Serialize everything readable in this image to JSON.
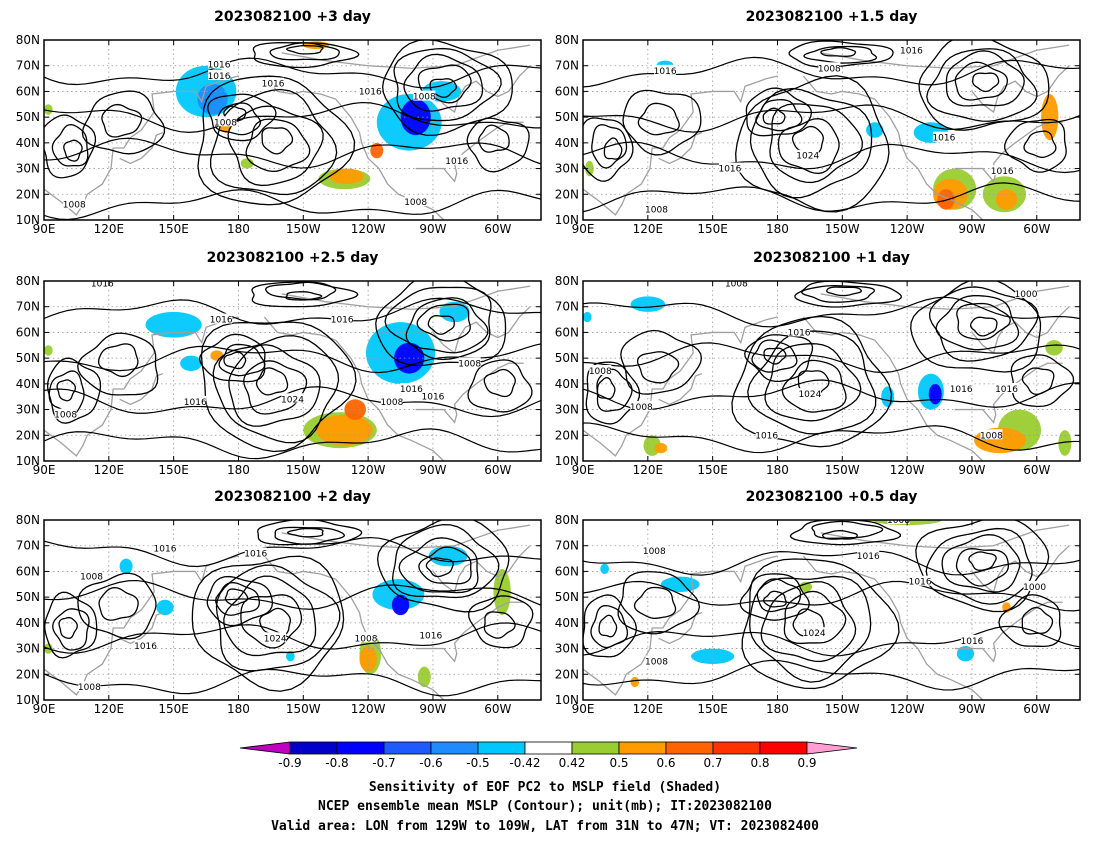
{
  "figure": {
    "captions": [
      "Sensitivity of EOF PC2 to MSLP field (Shaded)",
      "NCEP ensemble mean MSLP (Contour); unit(mb); IT:2023082100",
      "Valid area: LON from 129W to 109W, LAT from 31N to 47N; VT: 2023082400"
    ]
  },
  "axes": {
    "lat_labels": [
      "80N",
      "70N",
      "60N",
      "50N",
      "40N",
      "30N",
      "20N",
      "10N"
    ],
    "lon_labels": [
      "90E",
      "120E",
      "150E",
      "180",
      "150W",
      "120W",
      "90W",
      "60W"
    ]
  },
  "colorbar": {
    "ticks": [
      "-0.9",
      "-0.8",
      "-0.7",
      "-0.6",
      "-0.5",
      "-0.42",
      "0.42",
      "0.5",
      "0.6",
      "0.7",
      "0.8",
      "0.9"
    ],
    "colors": [
      "#c000c0",
      "#0000c8",
      "#0000ff",
      "#1e5aff",
      "#1e8cff",
      "#00c8ff",
      "#ffffff",
      "#9acd32",
      "#ff9b00",
      "#ff6400",
      "#ff3200",
      "#ff0000",
      "#ff9ed2"
    ]
  },
  "panels": [
    {
      "title": "2023082100 +3 day",
      "contour_labels": [
        {
          "text": "1016",
          "lon": 171,
          "lat": 70.5
        },
        {
          "text": "1016",
          "lon": 171,
          "lat": 66
        },
        {
          "text": "1016",
          "lon": 196,
          "lat": 63
        },
        {
          "text": "1008",
          "lon": 174,
          "lat": 48
        },
        {
          "text": "1016",
          "lon": 241,
          "lat": 60
        },
        {
          "text": "1008",
          "lon": 266,
          "lat": 58
        },
        {
          "text": "1016",
          "lon": 281,
          "lat": 33
        },
        {
          "text": "1008",
          "lon": 104,
          "lat": 16
        },
        {
          "text": "1008",
          "lon": 262,
          "lat": 17
        }
      ],
      "shading": [
        {
          "color": "#00c8ff",
          "lon": 165,
          "lat": 60,
          "rx": 14,
          "ry": 10
        },
        {
          "color": "#1e8cff",
          "lon": 168,
          "lat": 57,
          "rx": 7,
          "ry": 6
        },
        {
          "color": "#00c8ff",
          "lon": 259,
          "lat": 48,
          "rx": 15,
          "ry": 11
        },
        {
          "color": "#0000ff",
          "lon": 262,
          "lat": 50,
          "rx": 7,
          "ry": 7
        },
        {
          "color": "#00c8ff",
          "lon": 274,
          "lat": 60,
          "rx": 9,
          "ry": 4
        },
        {
          "color": "#ff9b00",
          "lon": 174,
          "lat": 47,
          "rx": 3,
          "ry": 3
        },
        {
          "color": "#9acd32",
          "lon": 229,
          "lat": 26,
          "rx": 12,
          "ry": 4
        },
        {
          "color": "#ff9b00",
          "lon": 230,
          "lat": 27,
          "rx": 8,
          "ry": 3
        },
        {
          "color": "#ff6400",
          "lon": 244,
          "lat": 37,
          "rx": 3,
          "ry": 3
        },
        {
          "color": "#ff9b00",
          "lon": 216,
          "lat": 78,
          "rx": 6,
          "ry": 1.5
        },
        {
          "color": "#9acd32",
          "lon": 184,
          "lat": 32,
          "rx": 3,
          "ry": 2
        },
        {
          "color": "#9acd32",
          "lon": 92,
          "lat": 53,
          "rx": 2,
          "ry": 2
        }
      ]
    },
    {
      "title": "2023082100 +1.5 day",
      "contour_labels": [
        {
          "text": "1016",
          "lon": 242,
          "lat": 76
        },
        {
          "text": "1008",
          "lon": 204,
          "lat": 69
        },
        {
          "text": "1016",
          "lon": 128,
          "lat": 68
        },
        {
          "text": "1024",
          "lon": 194,
          "lat": 35
        },
        {
          "text": "1016",
          "lon": 158,
          "lat": 30
        },
        {
          "text": "1016",
          "lon": 257,
          "lat": 42
        },
        {
          "text": "1016",
          "lon": 284,
          "lat": 29
        },
        {
          "text": "1008",
          "lon": 124,
          "lat": 14
        }
      ],
      "shading": [
        {
          "color": "#00c8ff",
          "lon": 128,
          "lat": 70,
          "rx": 4,
          "ry": 2
        },
        {
          "color": "#00c8ff",
          "lon": 225,
          "lat": 45,
          "rx": 4,
          "ry": 3
        },
        {
          "color": "#00c8ff",
          "lon": 251,
          "lat": 44,
          "rx": 8,
          "ry": 4
        },
        {
          "color": "#9acd32",
          "lon": 262,
          "lat": 22,
          "rx": 10,
          "ry": 8
        },
        {
          "color": "#ff9b00",
          "lon": 260,
          "lat": 20,
          "rx": 8,
          "ry": 6
        },
        {
          "color": "#ff6400",
          "lon": 258,
          "lat": 18,
          "rx": 4,
          "ry": 4
        },
        {
          "color": "#9acd32",
          "lon": 285,
          "lat": 20,
          "rx": 10,
          "ry": 7
        },
        {
          "color": "#ff9b00",
          "lon": 286,
          "lat": 18,
          "rx": 5,
          "ry": 4
        },
        {
          "color": "#ff9b00",
          "lon": 306,
          "lat": 50,
          "rx": 4,
          "ry": 9
        },
        {
          "color": "#9acd32",
          "lon": 93,
          "lat": 30,
          "rx": 2,
          "ry": 3
        }
      ]
    },
    {
      "title": "2023082100 +2.5 day",
      "contour_labels": [
        {
          "text": "1016",
          "lon": 117,
          "lat": 79
        },
        {
          "text": "1016",
          "lon": 172,
          "lat": 65
        },
        {
          "text": "1016",
          "lon": 228,
          "lat": 65
        },
        {
          "text": "1008",
          "lon": 287,
          "lat": 48
        },
        {
          "text": "1024",
          "lon": 205,
          "lat": 34
        },
        {
          "text": "1016",
          "lon": 160,
          "lat": 33
        },
        {
          "text": "1008",
          "lon": 251,
          "lat": 33
        },
        {
          "text": "1016",
          "lon": 260,
          "lat": 38
        },
        {
          "text": "1016",
          "lon": 270,
          "lat": 35
        },
        {
          "text": "1008",
          "lon": 100,
          "lat": 28
        }
      ],
      "shading": [
        {
          "color": "#00c8ff",
          "lon": 150,
          "lat": 63,
          "rx": 13,
          "ry": 5
        },
        {
          "color": "#00c8ff",
          "lon": 158,
          "lat": 48,
          "rx": 5,
          "ry": 3
        },
        {
          "color": "#00c8ff",
          "lon": 255,
          "lat": 52,
          "rx": 16,
          "ry": 12
        },
        {
          "color": "#0000ff",
          "lon": 259,
          "lat": 50,
          "rx": 7,
          "ry": 6
        },
        {
          "color": "#00c8ff",
          "lon": 280,
          "lat": 68,
          "rx": 7,
          "ry": 4
        },
        {
          "color": "#9acd32",
          "lon": 227,
          "lat": 22,
          "rx": 17,
          "ry": 7
        },
        {
          "color": "#ff9b00",
          "lon": 229,
          "lat": 22,
          "rx": 13,
          "ry": 6
        },
        {
          "color": "#ff6400",
          "lon": 234,
          "lat": 30,
          "rx": 5,
          "ry": 4
        },
        {
          "color": "#ff9b00",
          "lon": 170,
          "lat": 51,
          "rx": 3,
          "ry": 2
        },
        {
          "color": "#9acd32",
          "lon": 92,
          "lat": 53,
          "rx": 2,
          "ry": 2
        }
      ]
    },
    {
      "title": "2023082100 +1 day",
      "contour_labels": [
        {
          "text": "1008",
          "lon": 161,
          "lat": 79
        },
        {
          "text": "1016",
          "lon": 190,
          "lat": 60
        },
        {
          "text": "1000",
          "lon": 295,
          "lat": 75
        },
        {
          "text": "1024",
          "lon": 195,
          "lat": 36
        },
        {
          "text": "1008",
          "lon": 117,
          "lat": 31
        },
        {
          "text": "1008",
          "lon": 98,
          "lat": 45
        },
        {
          "text": "1016",
          "lon": 175,
          "lat": 20
        },
        {
          "text": "1016",
          "lon": 265,
          "lat": 38
        },
        {
          "text": "1016",
          "lon": 286,
          "lat": 38
        },
        {
          "text": "1008",
          "lon": 279,
          "lat": 20
        }
      ],
      "shading": [
        {
          "color": "#00c8ff",
          "lon": 120,
          "lat": 71,
          "rx": 8,
          "ry": 3
        },
        {
          "color": "#00c8ff",
          "lon": 231,
          "lat": 35,
          "rx": 3,
          "ry": 4
        },
        {
          "color": "#00c8ff",
          "lon": 251,
          "lat": 37,
          "rx": 6,
          "ry": 7
        },
        {
          "color": "#0000ff",
          "lon": 253,
          "lat": 36,
          "rx": 3,
          "ry": 4
        },
        {
          "color": "#9acd32",
          "lon": 292,
          "lat": 22,
          "rx": 10,
          "ry": 8
        },
        {
          "color": "#ff9b00",
          "lon": 283,
          "lat": 18,
          "rx": 12,
          "ry": 5
        },
        {
          "color": "#9acd32",
          "lon": 313,
          "lat": 17,
          "rx": 3,
          "ry": 5
        },
        {
          "color": "#9acd32",
          "lon": 122,
          "lat": 16,
          "rx": 4,
          "ry": 4
        },
        {
          "color": "#ff9b00",
          "lon": 126,
          "lat": 15,
          "rx": 3,
          "ry": 2
        },
        {
          "color": "#9acd32",
          "lon": 308,
          "lat": 54,
          "rx": 4,
          "ry": 3
        },
        {
          "color": "#00c8ff",
          "lon": 92,
          "lat": 66,
          "rx": 2,
          "ry": 2
        }
      ]
    },
    {
      "title": "2023082100 +2 day",
      "contour_labels": [
        {
          "text": "1016",
          "lon": 146,
          "lat": 69
        },
        {
          "text": "1016",
          "lon": 188,
          "lat": 67
        },
        {
          "text": "1008",
          "lon": 112,
          "lat": 58
        },
        {
          "text": "1024",
          "lon": 197,
          "lat": 34
        },
        {
          "text": "1016",
          "lon": 137,
          "lat": 31
        },
        {
          "text": "1008",
          "lon": 239,
          "lat": 34
        },
        {
          "text": "1016",
          "lon": 269,
          "lat": 35
        },
        {
          "text": "1008",
          "lon": 111,
          "lat": 15
        }
      ],
      "shading": [
        {
          "color": "#00c8ff",
          "lon": 128,
          "lat": 62,
          "rx": 3,
          "ry": 3
        },
        {
          "color": "#00c8ff",
          "lon": 146,
          "lat": 46,
          "rx": 4,
          "ry": 3
        },
        {
          "color": "#00c8ff",
          "lon": 254,
          "lat": 51,
          "rx": 12,
          "ry": 6
        },
        {
          "color": "#0000ff",
          "lon": 255,
          "lat": 47,
          "rx": 4,
          "ry": 4
        },
        {
          "color": "#00c8ff",
          "lon": 277,
          "lat": 66,
          "rx": 9,
          "ry": 4
        },
        {
          "color": "#9acd32",
          "lon": 302,
          "lat": 52,
          "rx": 4,
          "ry": 9
        },
        {
          "color": "#9acd32",
          "lon": 241,
          "lat": 28,
          "rx": 5,
          "ry": 8
        },
        {
          "color": "#ff9b00",
          "lon": 240,
          "lat": 26,
          "rx": 4,
          "ry": 5
        },
        {
          "color": "#9acd32",
          "lon": 266,
          "lat": 19,
          "rx": 3,
          "ry": 4
        },
        {
          "color": "#00c8ff",
          "lon": 204,
          "lat": 27,
          "rx": 2,
          "ry": 2
        },
        {
          "color": "#9acd32",
          "lon": 92,
          "lat": 30,
          "rx": 2,
          "ry": 2
        }
      ]
    },
    {
      "title": "2023082100 +0.5 day",
      "contour_labels": [
        {
          "text": "1008",
          "lon": 236,
          "lat": 80
        },
        {
          "text": "1008",
          "lon": 123,
          "lat": 68
        },
        {
          "text": "1016",
          "lon": 222,
          "lat": 66
        },
        {
          "text": "1016",
          "lon": 246,
          "lat": 56
        },
        {
          "text": "1000",
          "lon": 299,
          "lat": 54
        },
        {
          "text": "1024",
          "lon": 197,
          "lat": 36
        },
        {
          "text": "1016",
          "lon": 270,
          "lat": 33
        },
        {
          "text": "1008",
          "lon": 124,
          "lat": 25
        }
      ],
      "shading": [
        {
          "color": "#00c8ff",
          "lon": 135,
          "lat": 55,
          "rx": 9,
          "ry": 3
        },
        {
          "color": "#00c8ff",
          "lon": 150,
          "lat": 27,
          "rx": 10,
          "ry": 3
        },
        {
          "color": "#00c8ff",
          "lon": 267,
          "lat": 28,
          "rx": 4,
          "ry": 3
        },
        {
          "color": "#9acd32",
          "lon": 240,
          "lat": 80,
          "rx": 16,
          "ry": 2
        },
        {
          "color": "#9acd32",
          "lon": 193,
          "lat": 54,
          "rx": 3,
          "ry": 2
        },
        {
          "color": "#ff9b00",
          "lon": 286,
          "lat": 46,
          "rx": 2,
          "ry": 2
        },
        {
          "color": "#ff9b00",
          "lon": 114,
          "lat": 17,
          "rx": 2,
          "ry": 2
        },
        {
          "color": "#00c8ff",
          "lon": 100,
          "lat": 61,
          "rx": 2,
          "ry": 2
        }
      ]
    }
  ]
}
